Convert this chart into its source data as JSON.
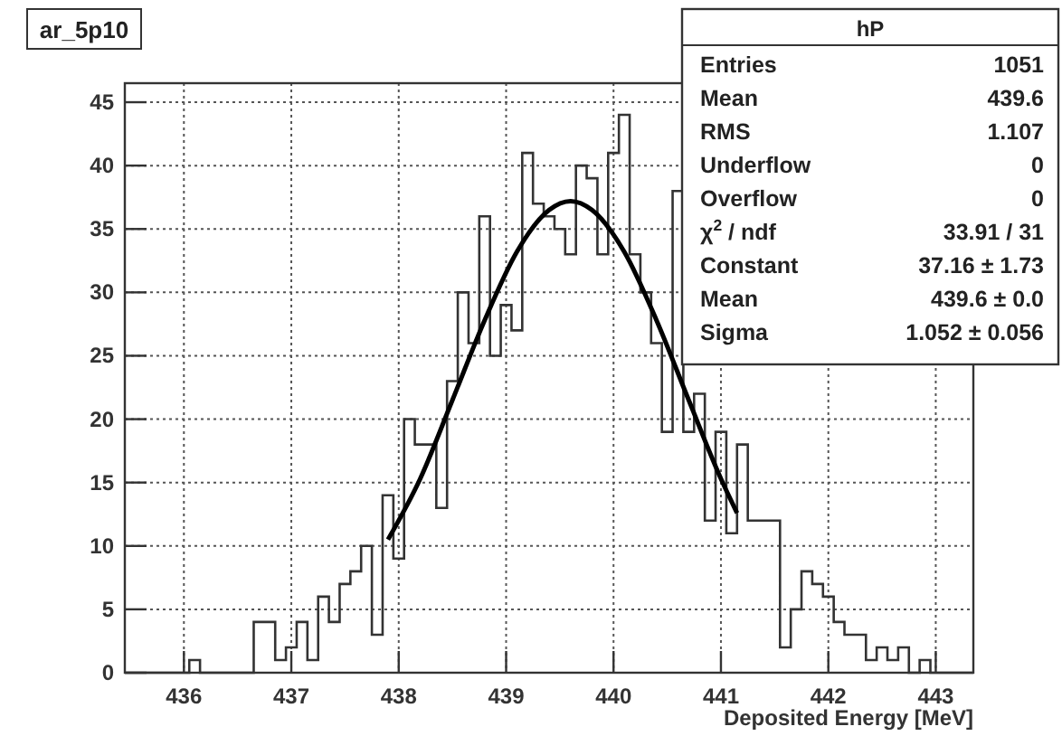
{
  "chart_data": {
    "type": "histogram",
    "title": "ar_5p10",
    "xlabel": "Deposited Energy [MeV]",
    "bins": [
      435.45,
      435.55,
      435.65,
      435.75,
      435.85,
      435.95,
      436.05,
      436.15,
      436.25,
      436.35,
      436.45,
      436.55,
      436.65,
      436.75,
      436.85,
      436.95,
      437.05,
      437.15,
      437.25,
      437.35,
      437.45,
      437.55,
      437.65,
      437.75,
      437.85,
      437.95,
      438.05,
      438.15,
      438.25,
      438.35,
      438.45,
      438.55,
      438.65,
      438.75,
      438.85,
      438.95,
      439.05,
      439.15,
      439.25,
      439.35,
      439.45,
      439.55,
      439.65,
      439.75,
      439.85,
      439.95,
      440.05,
      440.15,
      440.25,
      440.35,
      440.45,
      440.55,
      440.65,
      440.75,
      440.85,
      440.95,
      441.05,
      441.15,
      441.25,
      441.35,
      441.45,
      441.55,
      441.65,
      441.75,
      441.85,
      441.95,
      442.05,
      442.15,
      442.25,
      442.35,
      442.45,
      442.55,
      442.65,
      442.75,
      442.85,
      442.95,
      443.05,
      443.15,
      443.25,
      443.35
    ],
    "series": [
      {
        "color": "#333333",
        "values": [
          0,
          0,
          0,
          0,
          0,
          0,
          1,
          0,
          0,
          0,
          0,
          0,
          4,
          4,
          1,
          2,
          4,
          1,
          6,
          4,
          7,
          8,
          10,
          3,
          14,
          9,
          20,
          18,
          18,
          13,
          23,
          30,
          26,
          36,
          25,
          29,
          27,
          41,
          37,
          36,
          35,
          33,
          40,
          39,
          33,
          41,
          44,
          33,
          30,
          26,
          19,
          38,
          19,
          22,
          12,
          19,
          11,
          18,
          12,
          12,
          12,
          2,
          5,
          8,
          7,
          6,
          4,
          3,
          3,
          1,
          2,
          1,
          2,
          0,
          1,
          0,
          0,
          0,
          0
        ]
      },
      {
        "type": "line",
        "color": "#000000",
        "x": [
          437.9,
          438.2,
          438.5,
          438.8,
          439.1,
          439.4,
          439.6,
          439.8,
          440.1,
          440.4,
          440.7,
          441.0,
          441.15
        ],
        "values": [
          10.5,
          15.3,
          21.5,
          27.8,
          33.2,
          36.5,
          37.2,
          36.5,
          33.2,
          27.8,
          21.5,
          15.3,
          12.6
        ]
      }
    ],
    "xlim": [
      435.45,
      443.35
    ],
    "xticks": [
      436,
      437,
      438,
      439,
      440,
      441,
      442,
      443
    ],
    "ylim": [
      0,
      46.5
    ],
    "yticks": [
      0,
      5,
      10,
      15,
      20,
      25,
      30,
      35,
      40,
      45
    ],
    "grid": true,
    "annotations": [
      "hP",
      "Entries",
      "1051",
      "Mean",
      "439.6",
      "RMS",
      "1.107",
      "Underflow",
      "0",
      "Overflow",
      "0",
      "χ$^{2}$ / ndf",
      "33.91 / 31",
      "Constant",
      "37.16 ± 1.73",
      "Mean",
      "439.6 ± 0.0",
      "Sigma",
      "1.052 ± 0.056"
    ]
  }
}
